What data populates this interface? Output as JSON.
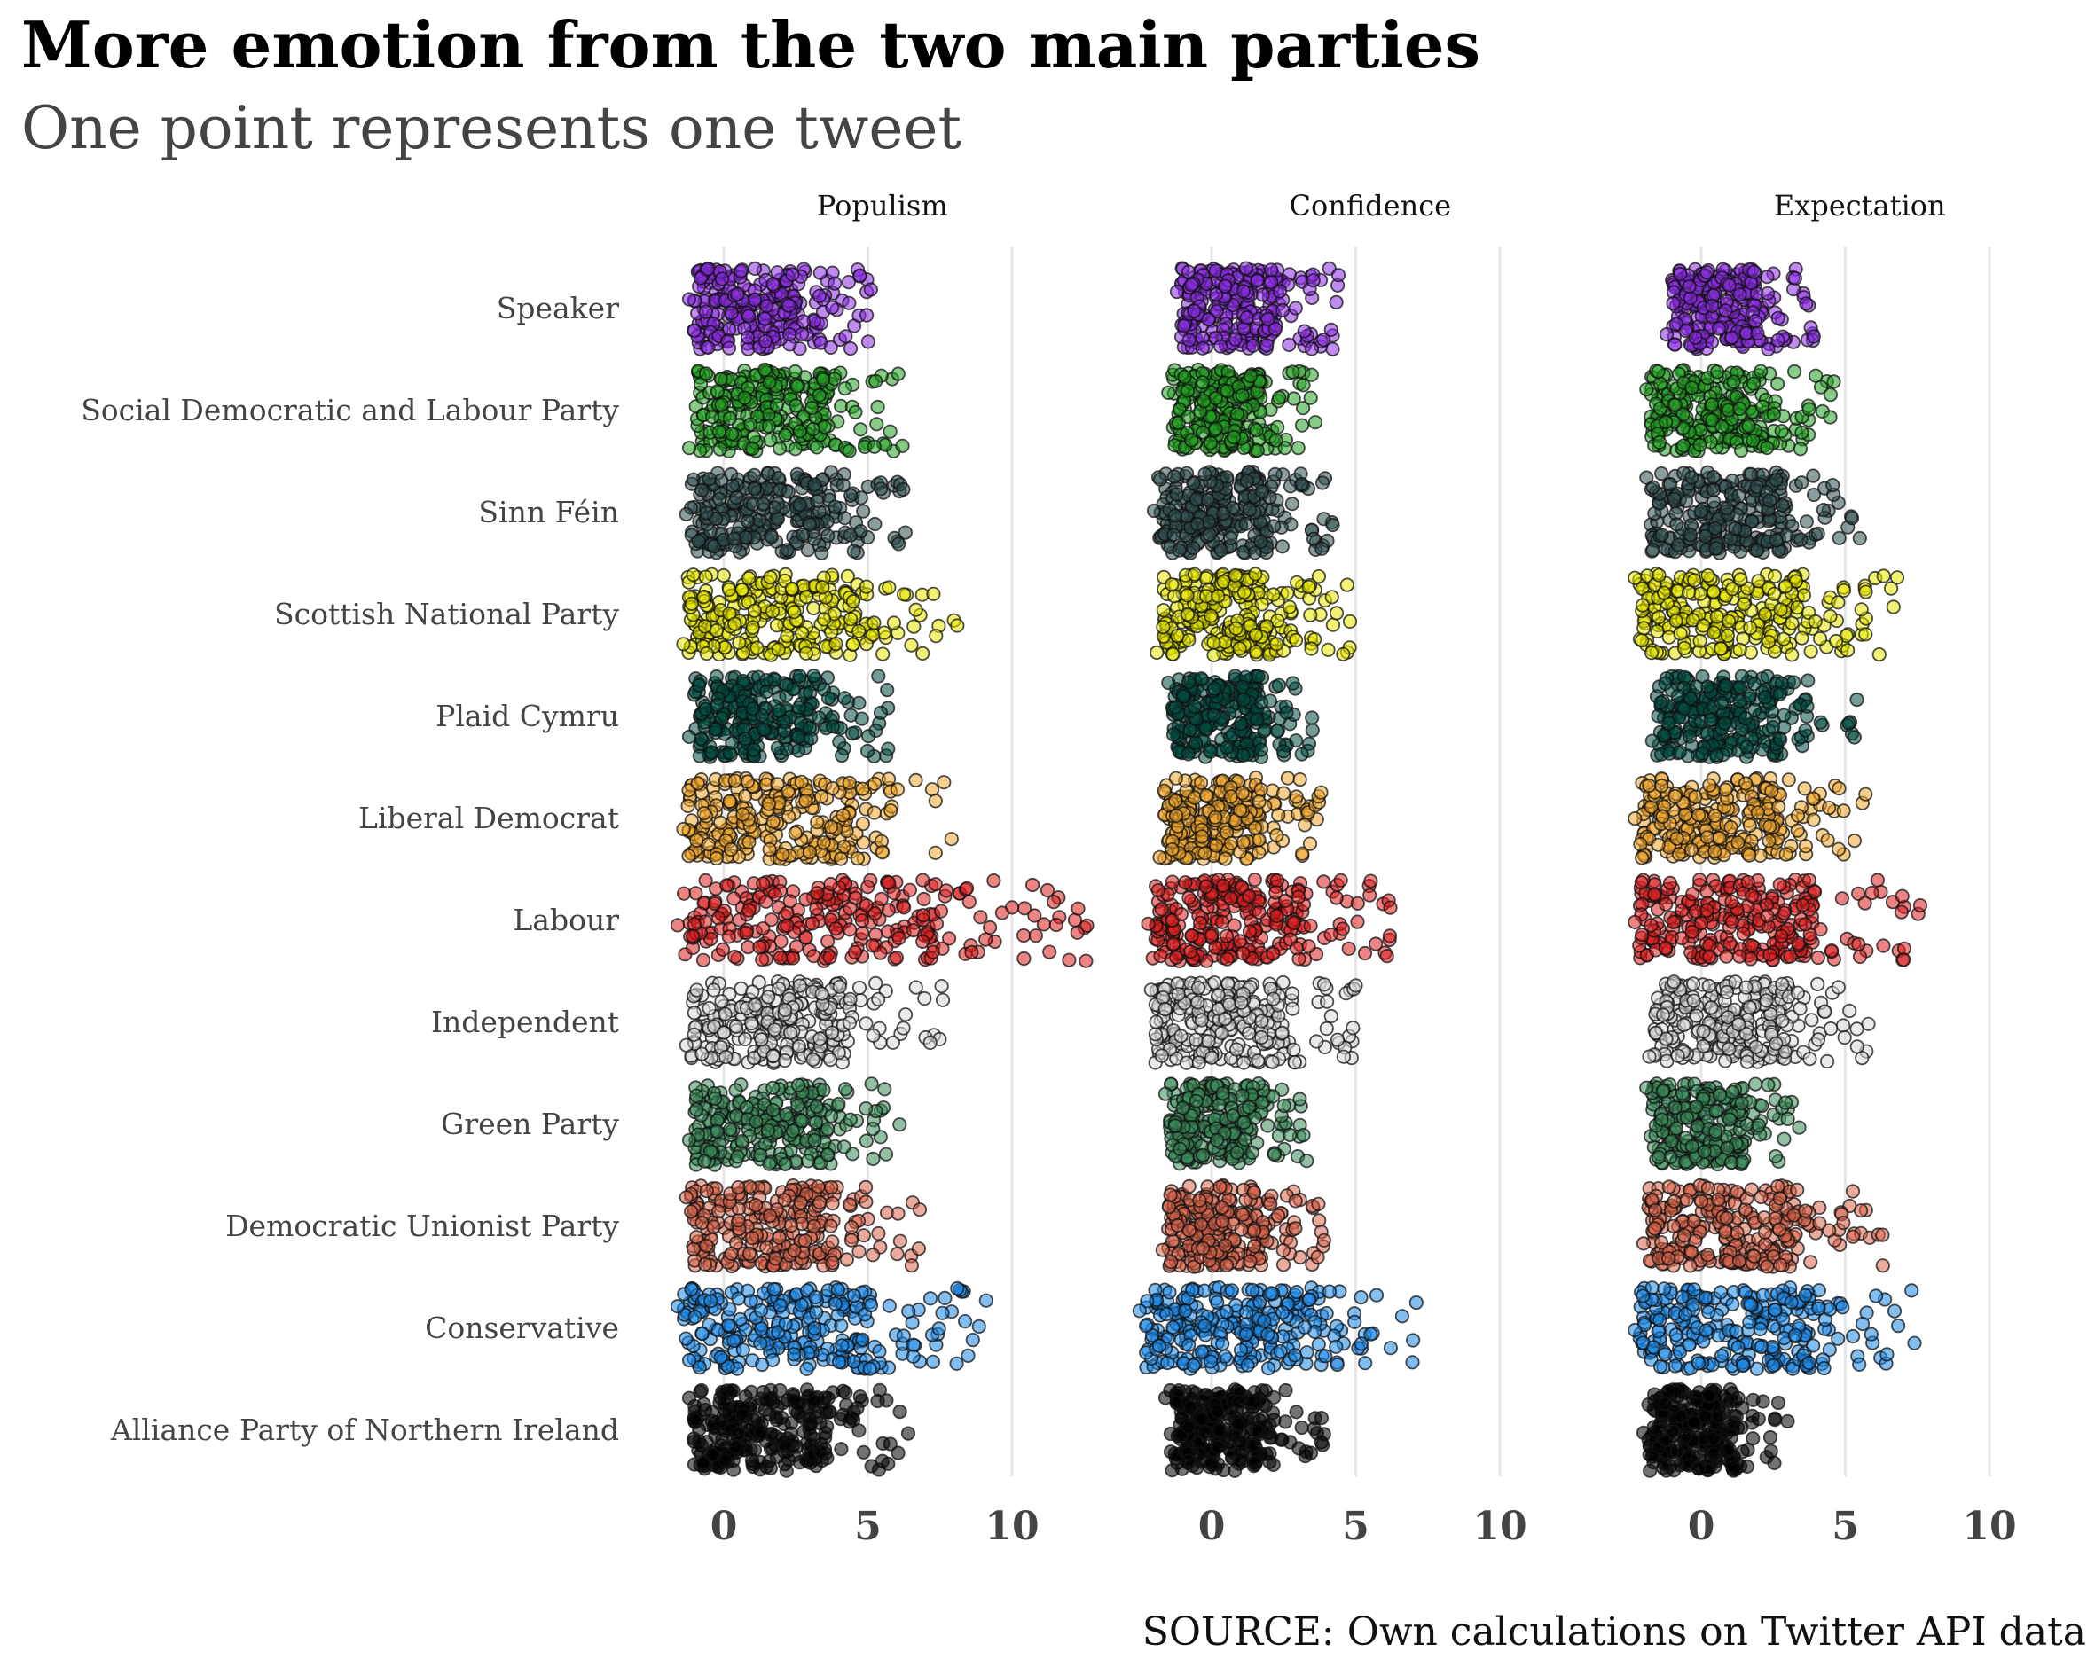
{
  "title": "More emotion from the two main parties",
  "subtitle": "One point represents one tweet",
  "caption": "SOURCE: Own calculations on Twitter API data",
  "chart_data": {
    "type": "scatter",
    "style": "jittered strip plot, faceted by emotion",
    "title": "More emotion from the two main parties",
    "subtitle": "One point represents one tweet",
    "facets": [
      "Populism",
      "Confidence",
      "Expectation"
    ],
    "x_ticks": [
      0,
      5,
      10
    ],
    "xlim": [
      -1.6,
      11.5
    ],
    "grid": "vertical lines at 0, 5, 10",
    "categories": [
      "Speaker",
      "Social Democratic and Labour Party",
      "Sinn Féin",
      "Scottish National Party",
      "Plaid Cymru",
      "Liberal Democrat",
      "Labour",
      "Independent",
      "Green Party",
      "Democratic Unionist Party",
      "Conservative",
      "Alliance Party of Northern Ireland"
    ],
    "series": [
      {
        "party": "Speaker",
        "color": "#8a2be2",
        "ranges": {
          "Populism": [
            -1.2,
            5.1
          ],
          "Confidence": [
            -1.2,
            4.4
          ],
          "Expectation": [
            -1.2,
            3.9
          ]
        }
      },
      {
        "party": "Social Democratic and Labour Party",
        "color": "#22a022",
        "ranges": {
          "Populism": [
            -1.2,
            6.2
          ],
          "Confidence": [
            -1.5,
            3.6
          ],
          "Expectation": [
            -1.9,
            4.6
          ]
        }
      },
      {
        "party": "Sinn Féin",
        "color": "#2f4f4f",
        "ranges": {
          "Populism": [
            -1.3,
            6.3
          ],
          "Confidence": [
            -2.0,
            4.2
          ],
          "Expectation": [
            -1.9,
            5.5
          ]
        }
      },
      {
        "party": "Scottish National Party",
        "color": "#e5e500",
        "ranges": {
          "Populism": [
            -1.4,
            8.1
          ],
          "Confidence": [
            -1.9,
            4.8
          ],
          "Expectation": [
            -2.3,
            6.8
          ]
        }
      },
      {
        "party": "Plaid Cymru",
        "color": "#004d40",
        "ranges": {
          "Populism": [
            -1.2,
            5.7
          ],
          "Confidence": [
            -1.5,
            3.5
          ],
          "Expectation": [
            -1.7,
            5.4
          ]
        }
      },
      {
        "party": "Liberal Democrat",
        "color": "#f0a830",
        "ranges": {
          "Populism": [
            -1.4,
            7.9
          ],
          "Confidence": [
            -1.8,
            3.8
          ],
          "Expectation": [
            -2.3,
            5.7
          ]
        }
      },
      {
        "party": "Labour",
        "color": "#dd1f1f",
        "ranges": {
          "Populism": [
            -1.6,
            12.6
          ],
          "Confidence": [
            -2.2,
            6.2
          ],
          "Expectation": [
            -2.3,
            7.6
          ]
        }
      },
      {
        "party": "Independent",
        "color": "#d8d8d8",
        "ranges": {
          "Populism": [
            -1.3,
            7.6
          ],
          "Confidence": [
            -2.1,
            5.0
          ],
          "Expectation": [
            -1.8,
            5.8
          ]
        }
      },
      {
        "party": "Green Party",
        "color": "#3a8b5a",
        "ranges": {
          "Populism": [
            -1.2,
            6.1
          ],
          "Confidence": [
            -1.6,
            3.3
          ],
          "Expectation": [
            -1.9,
            3.4
          ]
        }
      },
      {
        "party": "Democratic Unionist Party",
        "color": "#d9654a",
        "ranges": {
          "Populism": [
            -1.3,
            6.8
          ],
          "Confidence": [
            -1.7,
            3.9
          ],
          "Expectation": [
            -2.0,
            6.3
          ]
        }
      },
      {
        "party": "Conservative",
        "color": "#1e88e5",
        "ranges": {
          "Populism": [
            -1.6,
            9.1
          ],
          "Confidence": [
            -2.5,
            7.1
          ],
          "Expectation": [
            -2.3,
            7.4
          ]
        }
      },
      {
        "party": "Alliance Party of Northern Ireland",
        "color": "#000000",
        "ranges": {
          "Populism": [
            -1.2,
            6.4
          ],
          "Confidence": [
            -1.6,
            3.9
          ],
          "Expectation": [
            -2.0,
            3.0
          ]
        }
      }
    ]
  }
}
